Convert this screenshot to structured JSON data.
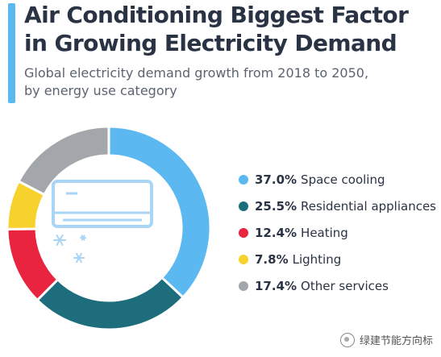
{
  "header": {
    "title_lines": [
      "Air Conditioning Biggest Factor",
      "in Growing Electricity Demand"
    ],
    "subtitle_lines": [
      "Global electricity demand growth from 2018 to 2050,",
      "by energy use category"
    ]
  },
  "colors": {
    "accent": "#5bb8f0",
    "title": "#2a3344",
    "ac_unit": "#a9d6f5"
  },
  "chart_data": {
    "type": "pie",
    "style": "donut",
    "title": "Air Conditioning Biggest Factor in Growing Electricity Demand",
    "subtitle": "Global electricity demand growth from 2018 to 2050, by energy use category",
    "unit": "%",
    "legend_position": "right",
    "start": "12 o'clock",
    "direction": "clockwise",
    "slices": [
      {
        "label": "Space cooling",
        "value": 37.0,
        "display": "37.0%",
        "color": "#5bb8f0"
      },
      {
        "label": "Residential appliances",
        "value": 25.5,
        "display": "25.5%",
        "color": "#1d6d7d"
      },
      {
        "label": "Heating",
        "value": 12.4,
        "display": "12.4%",
        "color": "#e8243f"
      },
      {
        "label": "Lighting",
        "value": 7.8,
        "display": "7.8%",
        "color": "#f8d22c"
      },
      {
        "label": "Other services",
        "value": 17.4,
        "display": "17.4%",
        "color": "#a3a6ab"
      }
    ]
  },
  "center_icons": [
    "air-conditioner-icon",
    "snowflake-icon"
  ],
  "watermark": {
    "text": "绿建节能方向标",
    "icon": "wechat-account-icon"
  }
}
